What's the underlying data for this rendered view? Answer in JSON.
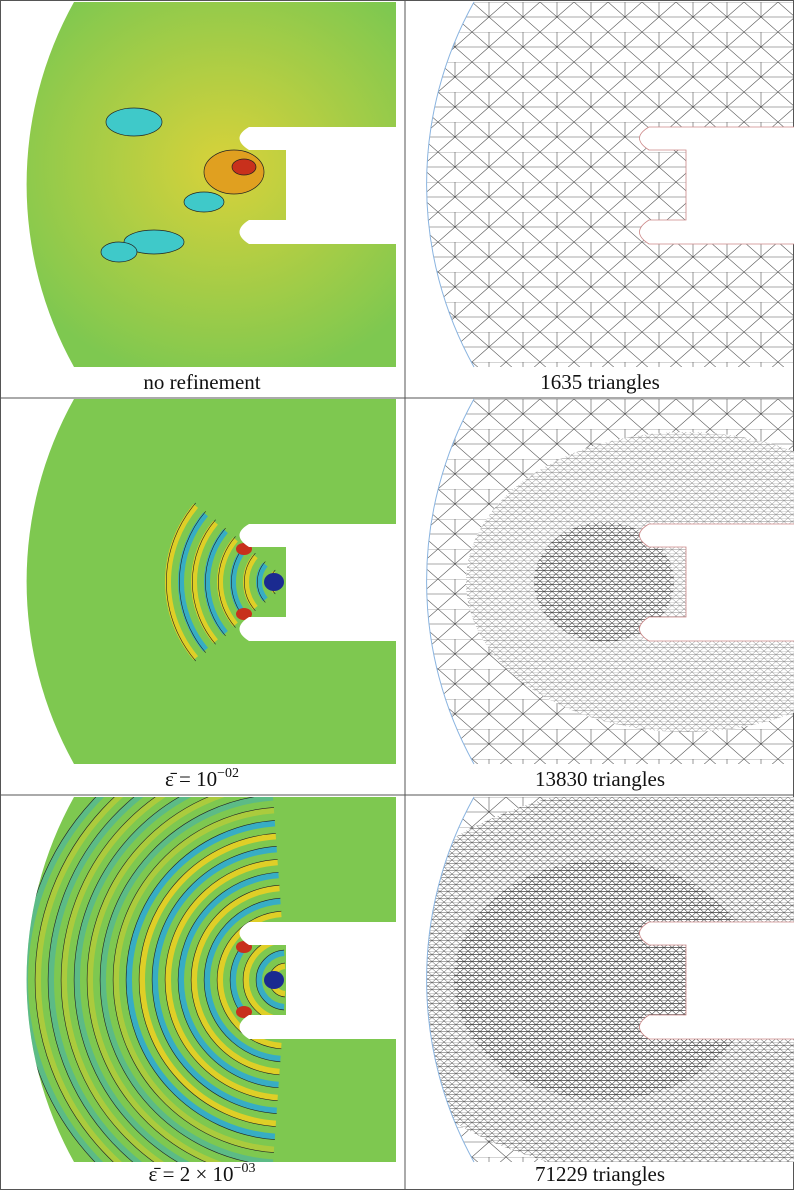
{
  "panels": [
    {
      "caption": "no refinement"
    },
    {
      "caption": "1635 triangles"
    },
    {
      "caption": {
        "base": "ε̄ = 10",
        "exponent": "−02"
      }
    },
    {
      "caption": "13830 triangles"
    },
    {
      "caption": {
        "base": "ε̄ = 2 × 10",
        "exponent": "−03"
      }
    },
    {
      "caption": "71229 triangles"
    }
  ]
}
